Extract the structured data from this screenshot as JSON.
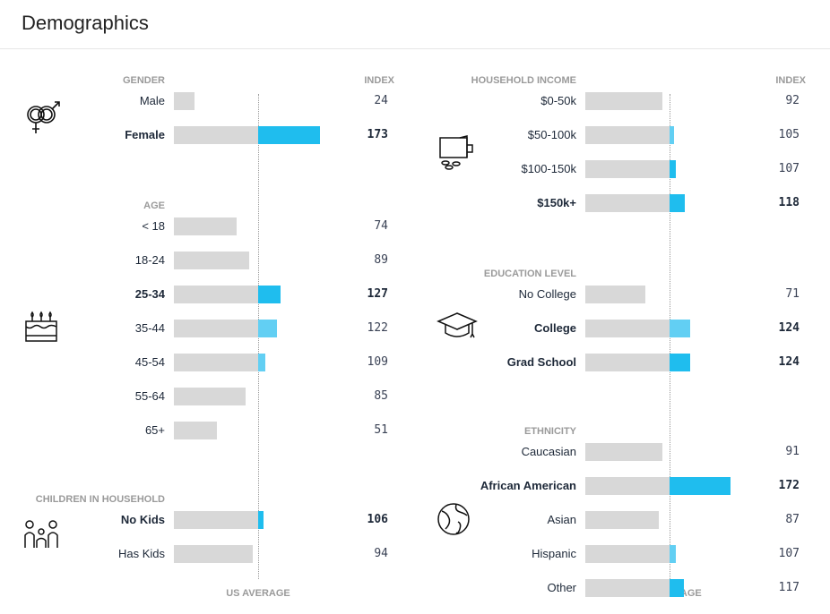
{
  "title": "Demographics",
  "index_label": "INDEX",
  "us_average_label": "US AVERAGE",
  "colors": {
    "bar": "#d8d8d8",
    "accent": "#1fbdee",
    "accent_light": "#62cff3"
  },
  "left": [
    {
      "header": "GENDER",
      "icon": "gender-icon",
      "rows": [
        {
          "label": "Male",
          "value": 24
        },
        {
          "label": "Female",
          "value": 173,
          "bold": true
        }
      ]
    },
    {
      "header": "AGE",
      "icon": "birthday-cake-icon",
      "rows": [
        {
          "label": "< 18",
          "value": 74
        },
        {
          "label": "18-24",
          "value": 89
        },
        {
          "label": "25-34",
          "value": 127,
          "bold": true
        },
        {
          "label": "35-44",
          "value": 122,
          "light": true
        },
        {
          "label": "45-54",
          "value": 109,
          "light": true
        },
        {
          "label": "55-64",
          "value": 85
        },
        {
          "label": "65+",
          "value": 51
        }
      ]
    },
    {
      "header": "CHILDREN IN HOUSEHOLD",
      "icon": "family-icon",
      "rows": [
        {
          "label": "No Kids",
          "value": 106,
          "bold": true
        },
        {
          "label": "Has Kids",
          "value": 94
        }
      ]
    }
  ],
  "right": [
    {
      "header": "HOUSEHOLD INCOME",
      "icon": "wallet-icon",
      "rows": [
        {
          "label": "$0-50k",
          "value": 92
        },
        {
          "label": "$50-100k",
          "value": 105,
          "light": true
        },
        {
          "label": "$100-150k",
          "value": 107
        },
        {
          "label": "$150k+",
          "value": 118,
          "bold": true
        }
      ]
    },
    {
      "header": "EDUCATION LEVEL",
      "icon": "graduation-cap-icon",
      "rows": [
        {
          "label": "No College",
          "value": 71
        },
        {
          "label": "College",
          "value": 124,
          "bold": true,
          "light": true
        },
        {
          "label": "Grad School",
          "value": 124,
          "bold": true
        }
      ]
    },
    {
      "header": "ETHNICITY",
      "icon": "globe-icon",
      "rows": [
        {
          "label": "Caucasian",
          "value": 91
        },
        {
          "label": "African American",
          "value": 172,
          "bold": true
        },
        {
          "label": "Asian",
          "value": 87
        },
        {
          "label": "Hispanic",
          "value": 107,
          "light": true
        },
        {
          "label": "Other",
          "value": 117
        }
      ]
    }
  ]
}
